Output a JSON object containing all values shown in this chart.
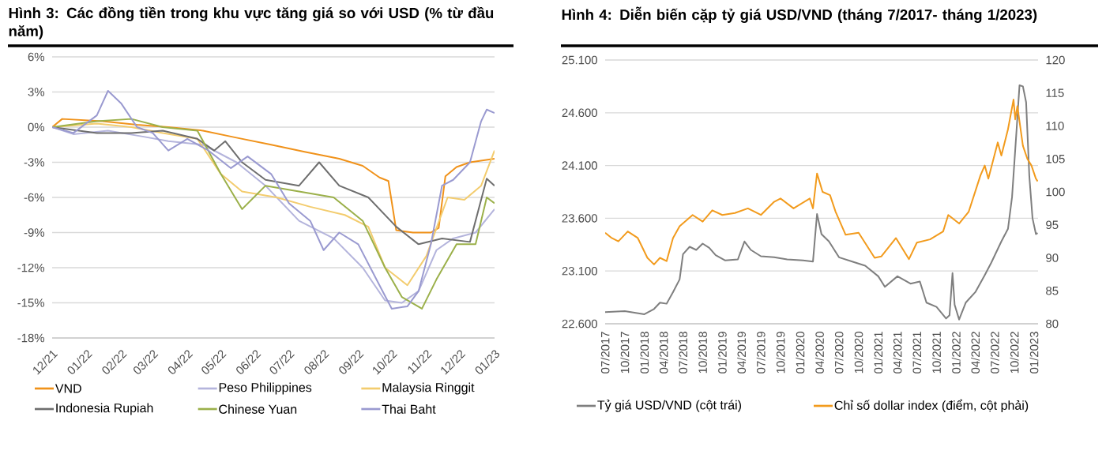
{
  "chart_data": [
    {
      "type": "line",
      "title": "Hình 3: Các đồng tiền trong khu vực tăng giá so với USD (% từ đầu năm)",
      "xlim": [
        "2021-12-01",
        "2023-01-01"
      ],
      "xticks": [
        {
          "value": "2021-12-01",
          "label": "12/21"
        },
        {
          "value": "2022-01-01",
          "label": "01/22"
        },
        {
          "value": "2022-02-01",
          "label": "02/22"
        },
        {
          "value": "2022-03-01",
          "label": "03/22"
        },
        {
          "value": "2022-04-01",
          "label": "04/22"
        },
        {
          "value": "2022-05-01",
          "label": "05/22"
        },
        {
          "value": "2022-06-01",
          "label": "06/22"
        },
        {
          "value": "2022-07-01",
          "label": "07/22"
        },
        {
          "value": "2022-08-01",
          "label": "08/22"
        },
        {
          "value": "2022-09-01",
          "label": "09/22"
        },
        {
          "value": "2022-10-01",
          "label": "10/22"
        },
        {
          "value": "2022-11-01",
          "label": "11/22"
        },
        {
          "value": "2022-12-01",
          "label": "12/22"
        },
        {
          "value": "2023-01-01",
          "label": "01/23"
        }
      ],
      "ylim": [
        -18,
        6
      ],
      "yticks": [
        {
          "value": -18,
          "label": "-18%"
        },
        {
          "value": -15,
          "label": "-15%"
        },
        {
          "value": -12,
          "label": "-12%"
        },
        {
          "value": -9,
          "label": "-9%"
        },
        {
          "value": -6,
          "label": "-6%"
        },
        {
          "value": -3,
          "label": "-3%"
        },
        {
          "value": 0,
          "label": "0%"
        },
        {
          "value": 3,
          "label": "3%"
        },
        {
          "value": 6,
          "label": "6%"
        }
      ],
      "grid": "y",
      "legend": "bottom",
      "series": [
        {
          "name": "VND",
          "color": "#f0921a",
          "x": [
            "2021-12-01",
            "2021-12-10",
            "2022-01-15",
            "2022-02-15",
            "2022-03-15",
            "2022-04-15",
            "2022-05-15",
            "2022-06-15",
            "2022-07-15",
            "2022-08-15",
            "2022-09-05",
            "2022-09-20",
            "2022-09-28",
            "2022-10-05",
            "2022-10-20",
            "2022-11-05",
            "2022-11-12",
            "2022-11-18",
            "2022-11-28",
            "2022-12-10",
            "2023-01-01"
          ],
          "values": [
            0,
            0.7,
            0.5,
            0.2,
            0,
            -0.3,
            -0.9,
            -1.5,
            -2.1,
            -2.7,
            -3.3,
            -4.3,
            -4.6,
            -8.8,
            -9,
            -9,
            -8.6,
            -4.2,
            -3.4,
            -3,
            -2.7
          ]
        },
        {
          "name": "Peso Philippines",
          "color": "#b4b4dc",
          "x": [
            "2021-12-01",
            "2021-12-20",
            "2022-01-20",
            "2022-02-20",
            "2022-03-15",
            "2022-04-15",
            "2022-05-15",
            "2022-06-10",
            "2022-07-10",
            "2022-08-10",
            "2022-09-05",
            "2022-09-25",
            "2022-10-10",
            "2022-10-25",
            "2022-11-10",
            "2022-11-25",
            "2022-12-15",
            "2023-01-01"
          ],
          "values": [
            0,
            -0.6,
            -0.3,
            -0.8,
            -1.2,
            -1.5,
            -3,
            -5,
            -8,
            -9.5,
            -12,
            -14.8,
            -15,
            -14,
            -10.5,
            -9.5,
            -9,
            -7
          ]
        },
        {
          "name": "Malaysia Ringgit",
          "color": "#f3cc6e",
          "x": [
            "2021-12-01",
            "2022-01-10",
            "2022-02-10",
            "2022-03-10",
            "2022-04-10",
            "2022-05-01",
            "2022-05-20",
            "2022-06-20",
            "2022-07-20",
            "2022-08-20",
            "2022-09-10",
            "2022-09-25",
            "2022-10-15",
            "2022-11-01",
            "2022-11-20",
            "2022-12-05",
            "2022-12-20",
            "2023-01-01"
          ],
          "values": [
            0,
            0.3,
            0,
            -0.5,
            -1,
            -4,
            -5.5,
            -6,
            -6.8,
            -7.5,
            -8.5,
            -12,
            -13.5,
            -11,
            -6,
            -6.2,
            -5,
            -2
          ]
        },
        {
          "name": "Indonesia Rupiah",
          "color": "#6e6e6e",
          "x": [
            "2021-12-01",
            "2022-01-10",
            "2022-02-10",
            "2022-03-10",
            "2022-04-10",
            "2022-04-25",
            "2022-05-05",
            "2022-05-20",
            "2022-06-10",
            "2022-07-10",
            "2022-07-28",
            "2022-08-15",
            "2022-09-10",
            "2022-10-05",
            "2022-10-25",
            "2022-11-15",
            "2022-12-10",
            "2022-12-25",
            "2023-01-01"
          ],
          "values": [
            0,
            -0.5,
            -0.5,
            -0.3,
            -1,
            -2,
            -1.2,
            -3,
            -4.5,
            -5,
            -3,
            -5,
            -6,
            -8.5,
            -10,
            -9.5,
            -9.8,
            -4.4,
            -5
          ]
        },
        {
          "name": "Chinese Yuan",
          "color": "#9bb04a",
          "x": [
            "2021-12-01",
            "2022-01-10",
            "2022-02-10",
            "2022-03-10",
            "2022-04-10",
            "2022-05-01",
            "2022-05-20",
            "2022-06-10",
            "2022-07-10",
            "2022-08-10",
            "2022-09-05",
            "2022-09-25",
            "2022-10-10",
            "2022-10-28",
            "2022-11-10",
            "2022-11-28",
            "2022-12-15",
            "2022-12-25",
            "2023-01-01"
          ],
          "values": [
            0,
            0.5,
            0.7,
            0,
            -0.3,
            -4,
            -7,
            -5,
            -5.5,
            -6,
            -8,
            -12,
            -14.5,
            -15.5,
            -13,
            -10,
            -10,
            -6,
            -6.5
          ]
        },
        {
          "name": "Thai Baht",
          "color": "#9a9ad0",
          "x": [
            "2021-12-01",
            "2021-12-20",
            "2022-01-10",
            "2022-01-20",
            "2022-02-01",
            "2022-02-15",
            "2022-03-01",
            "2022-03-15",
            "2022-04-01",
            "2022-04-20",
            "2022-05-10",
            "2022-05-25",
            "2022-06-15",
            "2022-07-01",
            "2022-07-20",
            "2022-08-01",
            "2022-08-15",
            "2022-09-01",
            "2022-09-20",
            "2022-10-01",
            "2022-10-15",
            "2022-10-25",
            "2022-11-05",
            "2022-11-15",
            "2022-11-25",
            "2022-12-10",
            "2022-12-20",
            "2022-12-25",
            "2023-01-01"
          ],
          "values": [
            0,
            -0.5,
            1,
            3.1,
            2,
            0,
            -0.5,
            -2,
            -1,
            -2,
            -3.5,
            -2.5,
            -4,
            -6.5,
            -8,
            -10.5,
            -9,
            -10,
            -13.5,
            -15.5,
            -15.3,
            -14,
            -10,
            -5,
            -4.5,
            -3,
            0.5,
            1.5,
            1.2
          ]
        }
      ]
    },
    {
      "type": "line",
      "title": "Hình 4: Diễn biến cặp tỷ giá USD/VND (tháng 7/2017- tháng 1/2023)",
      "xlim": [
        "2017-07-01",
        "2023-01-20"
      ],
      "xticks": [
        {
          "value": "2017-07",
          "label": "07/2017"
        },
        {
          "value": "2017-10",
          "label": "10/2017"
        },
        {
          "value": "2018-01",
          "label": "01/2018"
        },
        {
          "value": "2018-04",
          "label": "04/2018"
        },
        {
          "value": "2018-07",
          "label": "07/2018"
        },
        {
          "value": "2018-10",
          "label": "10/2018"
        },
        {
          "value": "2019-01",
          "label": "01/2019"
        },
        {
          "value": "2019-04",
          "label": "04/2019"
        },
        {
          "value": "2019-07",
          "label": "07/2019"
        },
        {
          "value": "2019-10",
          "label": "10/2019"
        },
        {
          "value": "2020-01",
          "label": "01/2020"
        },
        {
          "value": "2020-04",
          "label": "04/2020"
        },
        {
          "value": "2020-07",
          "label": "07/2020"
        },
        {
          "value": "2020-10",
          "label": "10/2020"
        },
        {
          "value": "2021-01",
          "label": "01/2021"
        },
        {
          "value": "2021-04",
          "label": "04/2021"
        },
        {
          "value": "2021-07",
          "label": "07/2021"
        },
        {
          "value": "2021-10",
          "label": "10/2021"
        },
        {
          "value": "2022-01",
          "label": "01/2022"
        },
        {
          "value": "2022-04",
          "label": "04/2022"
        },
        {
          "value": "2022-07",
          "label": "07/2022"
        },
        {
          "value": "2022-10",
          "label": "10/2022"
        },
        {
          "value": "2023-01",
          "label": "01/2023"
        }
      ],
      "ylim": [
        22600,
        25100
      ],
      "yticks": [
        {
          "value": 22600,
          "label": "22.600"
        },
        {
          "value": 23100,
          "label": "23.100"
        },
        {
          "value": 23600,
          "label": "23.600"
        },
        {
          "value": 24100,
          "label": "24.100"
        },
        {
          "value": 24600,
          "label": "24.600"
        },
        {
          "value": 25100,
          "label": "25.100"
        }
      ],
      "y2lim": [
        80,
        120
      ],
      "y2ticks": [
        80,
        85,
        90,
        95,
        100,
        105,
        110,
        115,
        120
      ],
      "grid": "y",
      "legend": "bottom",
      "series": [
        {
          "name": "Tỷ giá USD/VND (cột trái)",
          "color": "#7f7f7f",
          "x": [
            "2017-07-01",
            "2017-10-01",
            "2018-01-01",
            "2018-02-15",
            "2018-03-15",
            "2018-04-15",
            "2018-05-15",
            "2018-06-15",
            "2018-07-01",
            "2018-08-01",
            "2018-09-01",
            "2018-10-01",
            "2018-11-01",
            "2018-12-01",
            "2019-01-15",
            "2019-03-15",
            "2019-04-15",
            "2019-05-15",
            "2019-07-01",
            "2019-09-01",
            "2019-11-01",
            "2020-01-15",
            "2020-03-01",
            "2020-03-20",
            "2020-04-10",
            "2020-05-15",
            "2020-07-01",
            "2020-09-01",
            "2020-11-01",
            "2021-01-01",
            "2021-02-01",
            "2021-04-01",
            "2021-06-01",
            "2021-07-15",
            "2021-08-15",
            "2021-10-01",
            "2021-11-15",
            "2021-12-01",
            "2021-12-15",
            "2021-12-25",
            "2022-01-15",
            "2022-02-15",
            "2022-04-01",
            "2022-05-15",
            "2022-06-15",
            "2022-08-01",
            "2022-09-01",
            "2022-09-20",
            "2022-10-10",
            "2022-10-25",
            "2022-11-10",
            "2022-11-25",
            "2022-12-10",
            "2022-12-25",
            "2023-01-10",
            "2023-01-18"
          ],
          "values": [
            22710,
            22720,
            22690,
            22740,
            22800,
            22790,
            22900,
            23020,
            23260,
            23330,
            23300,
            23360,
            23320,
            23250,
            23200,
            23210,
            23380,
            23300,
            23240,
            23230,
            23210,
            23200,
            23190,
            23640,
            23450,
            23380,
            23230,
            23190,
            23150,
            23050,
            22950,
            23050,
            22980,
            23000,
            22800,
            22760,
            22650,
            22680,
            23080,
            22780,
            22640,
            22800,
            22900,
            23060,
            23180,
            23380,
            23500,
            23800,
            24400,
            24860,
            24850,
            24700,
            24000,
            23600,
            23450,
            23460
          ]
        },
        {
          "name": "Chỉ số dollar index (điểm, cột phải)",
          "color": "#f29b1d",
          "axis": "y2",
          "x": [
            "2017-07-01",
            "2017-08-01",
            "2017-09-01",
            "2017-10-15",
            "2017-12-01",
            "2018-01-15",
            "2018-02-15",
            "2018-03-15",
            "2018-04-15",
            "2018-05-15",
            "2018-06-15",
            "2018-08-15",
            "2018-10-01",
            "2018-11-15",
            "2019-01-01",
            "2019-03-01",
            "2019-05-01",
            "2019-07-01",
            "2019-09-01",
            "2019-10-01",
            "2019-12-01",
            "2020-02-15",
            "2020-03-01",
            "2020-03-20",
            "2020-04-15",
            "2020-05-20",
            "2020-06-15",
            "2020-08-01",
            "2020-10-01",
            "2020-12-15",
            "2021-01-15",
            "2021-03-25",
            "2021-05-25",
            "2021-07-01",
            "2021-09-01",
            "2021-11-01",
            "2021-11-25",
            "2022-01-15",
            "2022-03-01",
            "2022-04-25",
            "2022-05-15",
            "2022-06-01",
            "2022-07-15",
            "2022-08-01",
            "2022-09-01",
            "2022-09-27",
            "2022-10-05",
            "2022-10-15",
            "2022-11-10",
            "2022-12-01",
            "2022-12-20",
            "2023-01-10",
            "2023-01-18"
          ],
          "values": [
            93.8,
            93,
            92.5,
            94,
            93,
            90,
            89,
            90,
            89.5,
            93,
            94.8,
            96.5,
            95.5,
            97.2,
            96.5,
            96.8,
            97.5,
            96.5,
            98.5,
            99,
            97.5,
            99,
            97.5,
            102.8,
            100,
            99.5,
            97,
            93.5,
            93.8,
            90,
            90.2,
            93,
            89.8,
            92.3,
            92.8,
            94,
            96.5,
            95.2,
            97,
            102.5,
            104,
            102,
            107.5,
            105.5,
            109.5,
            114,
            111,
            113,
            107,
            105,
            104,
            102,
            101.6
          ]
        }
      ]
    }
  ]
}
